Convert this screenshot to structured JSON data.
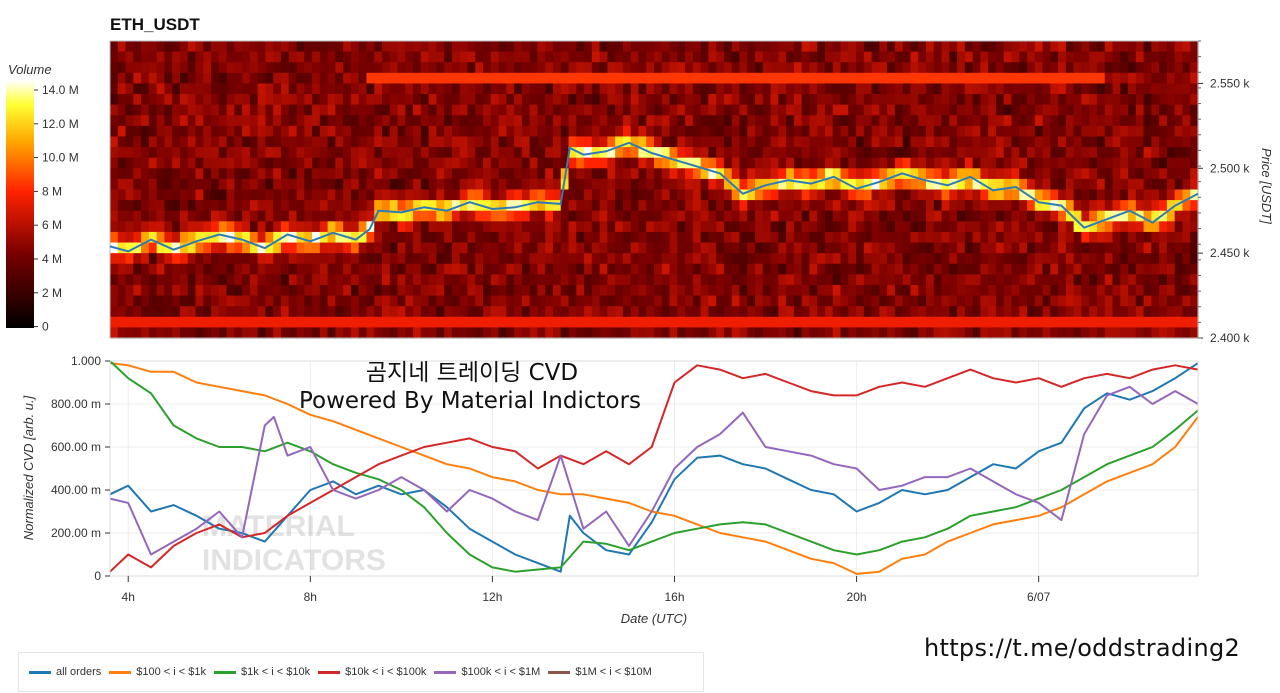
{
  "header": {
    "symbol": "ETH_USDT"
  },
  "overlay": {
    "line1": "곰지네 트레이딩 CVD",
    "line2": "Powered By Material Indictors",
    "watermark_line1": "MATERIAL",
    "watermark_line2": "INDICATORS",
    "url": "https://t.me/oddstrading2"
  },
  "colors": {
    "heat_low": "#000000",
    "heat_mid": "#ff2200",
    "heat_high": "#ffffff"
  },
  "chart_data": [
    {
      "type": "heatmap",
      "title": "ETH_USDT",
      "colorbar": {
        "label": "Volume",
        "ticks": [
          "14.0 M",
          "12.0 M",
          "10.0 M",
          "8 M",
          "6 M",
          "4 M",
          "2 M",
          "0"
        ],
        "range": [
          0,
          16
        ]
      },
      "yaxis": {
        "label": "Price [USDT]",
        "ticks": [
          "2.550 k",
          "2.500 k",
          "2.450 k",
          "2.400 k"
        ],
        "range": [
          2.4,
          2.575
        ]
      },
      "price_line": {
        "color": "#2f7bb6",
        "x_hours": [
          3.6,
          4,
          4.5,
          5,
          5.5,
          6,
          6.5,
          7,
          7.5,
          8,
          8.5,
          9,
          9.3,
          9.5,
          10,
          10.5,
          11,
          11.5,
          12,
          12.5,
          13,
          13.5,
          13.7,
          14,
          14.5,
          15,
          15.5,
          16,
          16.5,
          17,
          17.5,
          18,
          18.5,
          19,
          19.5,
          20,
          20.5,
          21,
          21.5,
          22,
          22.5,
          23,
          23.5,
          24,
          24.5,
          25,
          25.5,
          26,
          26.5,
          27,
          27.5
        ],
        "y_k": [
          2.454,
          2.451,
          2.458,
          2.452,
          2.457,
          2.461,
          2.458,
          2.453,
          2.461,
          2.457,
          2.462,
          2.458,
          2.464,
          2.475,
          2.474,
          2.477,
          2.475,
          2.48,
          2.476,
          2.477,
          2.48,
          2.479,
          2.512,
          2.508,
          2.51,
          2.515,
          2.509,
          2.505,
          2.501,
          2.497,
          2.485,
          2.49,
          2.493,
          2.491,
          2.495,
          2.488,
          2.492,
          2.497,
          2.493,
          2.49,
          2.495,
          2.487,
          2.489,
          2.48,
          2.478,
          2.465,
          2.47,
          2.475,
          2.468,
          2.478,
          2.485
        ]
      }
    },
    {
      "type": "line",
      "xlabel": "Date (UTC)",
      "ylabel": "Normalized CVD [arb. u.]",
      "x_ticks": [
        "4h",
        "8h",
        "12h",
        "16h",
        "20h",
        "6/07"
      ],
      "x_tick_hours": [
        4,
        8,
        12,
        16,
        20,
        24
      ],
      "y_ticks": [
        "0",
        "200.00 m",
        "400.00 m",
        "600.00 m",
        "800.00 m",
        "1.000"
      ],
      "xlim": [
        3.6,
        27.5
      ],
      "ylim": [
        0,
        1
      ],
      "grid": true,
      "legend_position": "bottom-left",
      "series": [
        {
          "name": "all orders",
          "color": "#1f77b4",
          "x": [
            3.6,
            4,
            4.5,
            5,
            5.5,
            6,
            6.5,
            7,
            7.5,
            8,
            8.5,
            9,
            9.5,
            10,
            10.5,
            11,
            11.5,
            12,
            12.5,
            13,
            13.5,
            13.7,
            14,
            14.5,
            15,
            15.5,
            16,
            16.5,
            17,
            17.5,
            18,
            18.5,
            19,
            19.5,
            20,
            20.5,
            21,
            21.5,
            22,
            22.5,
            23,
            23.5,
            24,
            24.5,
            25,
            25.5,
            26,
            26.5,
            27,
            27.5
          ],
          "y": [
            0.38,
            0.42,
            0.3,
            0.33,
            0.28,
            0.22,
            0.2,
            0.16,
            0.28,
            0.4,
            0.44,
            0.38,
            0.42,
            0.38,
            0.4,
            0.32,
            0.22,
            0.16,
            0.1,
            0.06,
            0.02,
            0.28,
            0.2,
            0.12,
            0.1,
            0.25,
            0.45,
            0.55,
            0.56,
            0.52,
            0.5,
            0.45,
            0.4,
            0.38,
            0.3,
            0.34,
            0.4,
            0.38,
            0.4,
            0.46,
            0.52,
            0.5,
            0.58,
            0.62,
            0.78,
            0.85,
            0.82,
            0.86,
            0.92,
            0.99
          ]
        },
        {
          "name": "$100 < i < $1k",
          "color": "#ff7f0e",
          "x": [
            3.6,
            4,
            4.5,
            5,
            5.5,
            6,
            6.5,
            7,
            7.5,
            8,
            8.5,
            9,
            9.5,
            10,
            10.5,
            11,
            11.5,
            12,
            12.5,
            13,
            13.5,
            14,
            14.5,
            15,
            15.5,
            16,
            16.5,
            17,
            17.5,
            18,
            18.5,
            19,
            19.5,
            20,
            20.5,
            21,
            21.5,
            22,
            22.5,
            23,
            23.5,
            24,
            24.5,
            25,
            25.5,
            26,
            26.5,
            27,
            27.5
          ],
          "y": [
            0.99,
            0.98,
            0.95,
            0.95,
            0.9,
            0.88,
            0.86,
            0.84,
            0.8,
            0.75,
            0.72,
            0.68,
            0.64,
            0.6,
            0.56,
            0.52,
            0.5,
            0.46,
            0.44,
            0.4,
            0.38,
            0.38,
            0.36,
            0.34,
            0.3,
            0.28,
            0.24,
            0.2,
            0.18,
            0.16,
            0.12,
            0.08,
            0.06,
            0.01,
            0.02,
            0.08,
            0.1,
            0.16,
            0.2,
            0.24,
            0.26,
            0.28,
            0.32,
            0.38,
            0.44,
            0.48,
            0.52,
            0.6,
            0.74
          ]
        },
        {
          "name": "$1k < i < $10k",
          "color": "#2ca02c",
          "x": [
            3.6,
            4,
            4.5,
            5,
            5.5,
            6,
            6.5,
            7,
            7.5,
            8,
            8.5,
            9,
            9.5,
            10,
            10.5,
            11,
            11.5,
            12,
            12.5,
            13,
            13.5,
            14,
            14.5,
            15,
            15.5,
            16,
            16.5,
            17,
            17.5,
            18,
            18.5,
            19,
            19.5,
            20,
            20.5,
            21,
            21.5,
            22,
            22.5,
            23,
            23.5,
            24,
            24.5,
            25,
            25.5,
            26,
            26.5,
            27,
            27.5
          ],
          "y": [
            1.0,
            0.92,
            0.85,
            0.7,
            0.64,
            0.6,
            0.6,
            0.58,
            0.62,
            0.58,
            0.52,
            0.48,
            0.45,
            0.4,
            0.32,
            0.2,
            0.1,
            0.04,
            0.02,
            0.03,
            0.04,
            0.16,
            0.15,
            0.12,
            0.16,
            0.2,
            0.22,
            0.24,
            0.25,
            0.24,
            0.2,
            0.16,
            0.12,
            0.1,
            0.12,
            0.16,
            0.18,
            0.22,
            0.28,
            0.3,
            0.32,
            0.36,
            0.4,
            0.46,
            0.52,
            0.56,
            0.6,
            0.68,
            0.77
          ]
        },
        {
          "name": "$10k < i < $100k",
          "color": "#d62728",
          "x": [
            3.6,
            4,
            4.5,
            5,
            5.5,
            6,
            6.5,
            7,
            7.5,
            8,
            8.5,
            9,
            9.5,
            10,
            10.5,
            11,
            11.5,
            12,
            12.5,
            13,
            13.5,
            14,
            14.5,
            15,
            15.5,
            16,
            16.5,
            17,
            17.5,
            18,
            18.5,
            19,
            19.5,
            20,
            20.5,
            21,
            21.5,
            22,
            22.5,
            23,
            23.5,
            24,
            24.5,
            25,
            25.5,
            26,
            26.5,
            27,
            27.5
          ],
          "y": [
            0.02,
            0.1,
            0.04,
            0.14,
            0.2,
            0.24,
            0.18,
            0.2,
            0.28,
            0.34,
            0.4,
            0.46,
            0.52,
            0.56,
            0.6,
            0.62,
            0.64,
            0.6,
            0.58,
            0.5,
            0.56,
            0.52,
            0.58,
            0.52,
            0.6,
            0.9,
            0.98,
            0.96,
            0.92,
            0.94,
            0.9,
            0.86,
            0.84,
            0.84,
            0.88,
            0.9,
            0.88,
            0.92,
            0.96,
            0.92,
            0.9,
            0.92,
            0.88,
            0.92,
            0.94,
            0.92,
            0.96,
            0.98,
            0.96
          ]
        },
        {
          "name": "$100k < i < $1M",
          "color": "#9467bd",
          "x": [
            3.6,
            4,
            4.5,
            5,
            5.5,
            6,
            6.5,
            7,
            7.2,
            7.5,
            8,
            8.5,
            9,
            9.5,
            10,
            10.5,
            11,
            11.5,
            12,
            12.5,
            13,
            13.5,
            14,
            14.5,
            15,
            15.5,
            16,
            16.5,
            17,
            17.5,
            18,
            18.5,
            19,
            19.5,
            20,
            20.5,
            21,
            21.5,
            22,
            22.5,
            23,
            23.5,
            24,
            24.5,
            25,
            25.5,
            26,
            26.5,
            27,
            27.5
          ],
          "y": [
            0.36,
            0.34,
            0.1,
            0.16,
            0.22,
            0.3,
            0.18,
            0.7,
            0.74,
            0.56,
            0.6,
            0.4,
            0.36,
            0.4,
            0.46,
            0.4,
            0.3,
            0.4,
            0.36,
            0.3,
            0.26,
            0.56,
            0.22,
            0.3,
            0.14,
            0.3,
            0.5,
            0.6,
            0.66,
            0.76,
            0.6,
            0.58,
            0.56,
            0.52,
            0.5,
            0.4,
            0.42,
            0.46,
            0.46,
            0.5,
            0.44,
            0.38,
            0.34,
            0.26,
            0.66,
            0.84,
            0.88,
            0.8,
            0.86,
            0.8
          ]
        },
        {
          "name": "$1M < i < $10M",
          "color": "#8c564b",
          "x": [],
          "y": []
        }
      ]
    }
  ]
}
